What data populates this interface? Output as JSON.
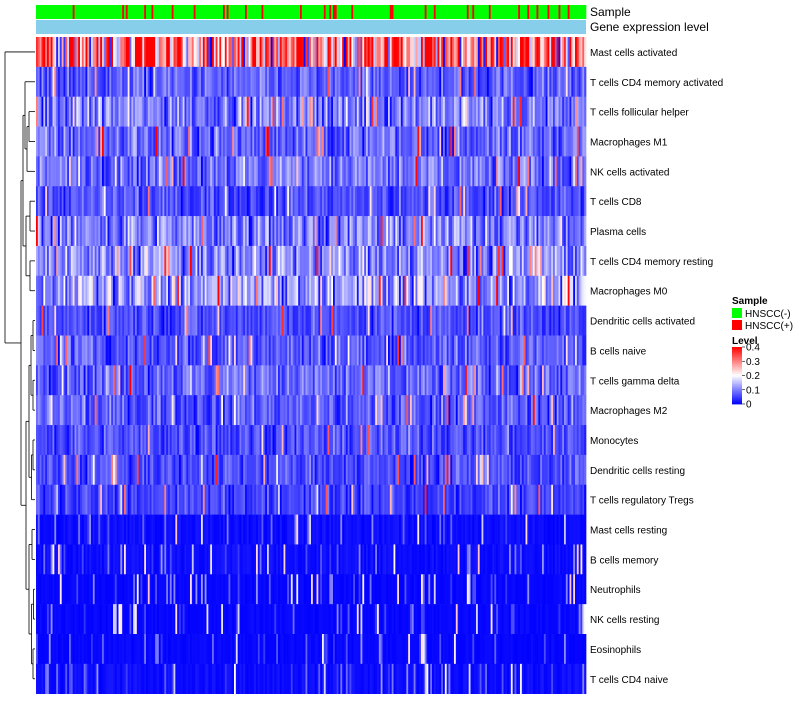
{
  "chart_data": {
    "type": "heatmap",
    "title": "",
    "annotations": [
      {
        "label": "Sample"
      },
      {
        "label": "Gene expression level"
      }
    ],
    "rows": [
      "Mast cells activated",
      "T cells CD4 memory activated",
      "T cells follicular helper",
      "Macrophages M1",
      "NK cells activated",
      "T cells CD8",
      "Plasma cells",
      "T cells CD4 memory resting",
      "Macrophages M0",
      "Dendritic cells activated",
      "B cells naive",
      "T cells gamma delta",
      "Macrophages M2",
      "Monocytes",
      "Dendritic cells resting",
      "T cells regulatory  Tregs",
      "Mast cells resting",
      "B cells memory",
      "Neutrophils",
      "NK cells resting",
      "Eosinophils",
      "T cells CD4 naive"
    ],
    "row_mean_level": [
      0.28,
      0.07,
      0.1,
      0.08,
      0.09,
      0.06,
      0.1,
      0.11,
      0.12,
      0.06,
      0.07,
      0.08,
      0.07,
      0.06,
      0.06,
      0.05,
      0.02,
      0.02,
      0.01,
      0.01,
      0.01,
      0.02
    ],
    "n_samples": 300,
    "color_scale": {
      "min": 0,
      "max": 0.4,
      "ticks": [
        "0",
        "0.1",
        "0.2",
        "0.3",
        "0.4"
      ],
      "colors": [
        "#0000ff",
        "#ffffff",
        "#ff0000"
      ]
    },
    "legend": {
      "sample_title": "Sample",
      "sample_items": [
        {
          "label": "HNSCC(-)",
          "color": "#00ff00"
        },
        {
          "label": "HNSCC(+)",
          "color": "#ff0000"
        }
      ],
      "level_title": "Level",
      "expression_bar_color": "#87ceeb"
    }
  }
}
